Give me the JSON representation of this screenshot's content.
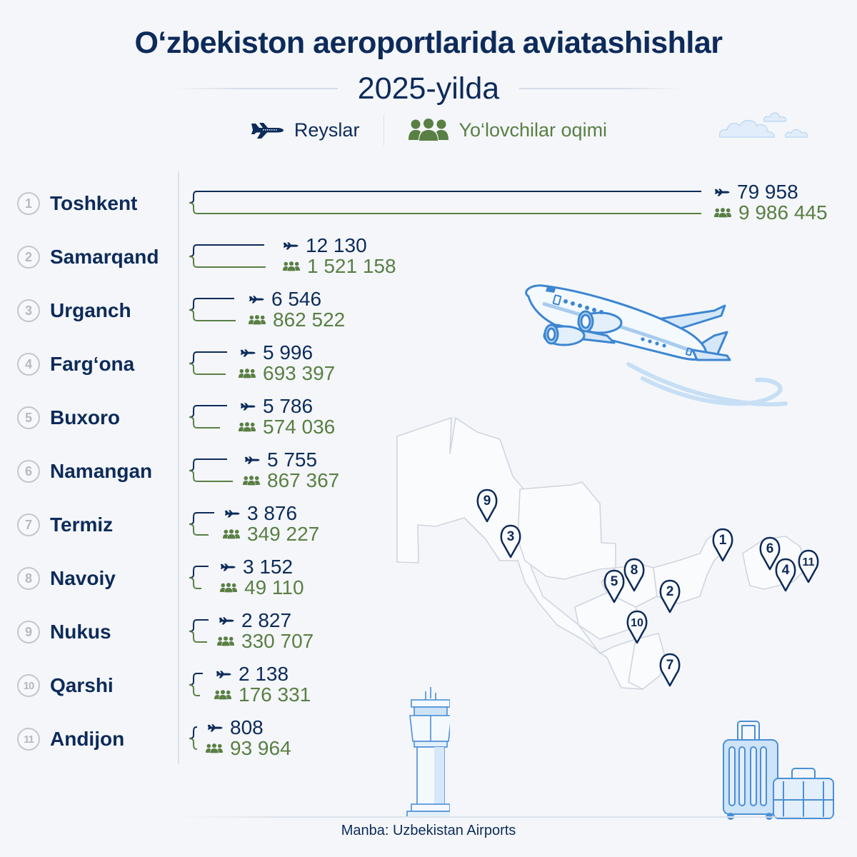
{
  "header": {
    "title": "O‘zbekiston aeroportlarida aviatashishlar",
    "subtitle": "2025-yilda"
  },
  "legend": {
    "flights_label": "Reyslar",
    "flights_icon": "airplane-icon",
    "passengers_label": "Yo‘lovchilar oqimi",
    "passengers_icon": "people-group-icon"
  },
  "colors": {
    "navy": "#0d2b5a",
    "green": "#5a7f44",
    "rank_gray": "#b5b9bf",
    "illustration_blue": "#4a8fd6",
    "background": "#f4f6f9"
  },
  "rows": [
    {
      "rank": "1",
      "city": "Toshkent",
      "flights": "79 958",
      "passengers": "9 986 445"
    },
    {
      "rank": "2",
      "city": "Samarqand",
      "flights": "12 130",
      "passengers": "1 521 158"
    },
    {
      "rank": "3",
      "city": "Urganch",
      "flights": "6 546",
      "passengers": "862 522"
    },
    {
      "rank": "4",
      "city": "Farg‘ona",
      "flights": "5 996",
      "passengers": "693 397"
    },
    {
      "rank": "5",
      "city": "Buxoro",
      "flights": "5 786",
      "passengers": "574 036"
    },
    {
      "rank": "6",
      "city": "Namangan",
      "flights": "5 755",
      "passengers": "867 367"
    },
    {
      "rank": "7",
      "city": "Termiz",
      "flights": "3 876",
      "passengers": "349 227"
    },
    {
      "rank": "8",
      "city": "Navoiy",
      "flights": "3 152",
      "passengers": "49 110"
    },
    {
      "rank": "9",
      "city": "Nukus",
      "flights": "2 827",
      "passengers": "330 707"
    },
    {
      "rank": "10",
      "city": "Qarshi",
      "flights": "2 138",
      "passengers": "176 331"
    },
    {
      "rank": "11",
      "city": "Andijon",
      "flights": "808",
      "passengers": "93 964"
    }
  ],
  "map": {
    "pins": [
      {
        "label": "1",
        "city": "Toshkent"
      },
      {
        "label": "2",
        "city": "Samarqand"
      },
      {
        "label": "3",
        "city": "Urganch"
      },
      {
        "label": "4",
        "city": "Farg‘ona"
      },
      {
        "label": "5",
        "city": "Buxoro"
      },
      {
        "label": "6",
        "city": "Namangan"
      },
      {
        "label": "7",
        "city": "Termiz"
      },
      {
        "label": "8",
        "city": "Navoiy"
      },
      {
        "label": "9",
        "city": "Nukus"
      },
      {
        "label": "10",
        "city": "Qarshi"
      },
      {
        "label": "11",
        "city": "Andijon"
      }
    ]
  },
  "footer": {
    "source": "Manba: Uzbekistan Airports"
  },
  "chart_data": {
    "type": "bar",
    "title": "O‘zbekiston aeroportlarida aviatashishlar 2025-yilda",
    "subtitle": "2025-yilda",
    "categories": [
      "Toshkent",
      "Samarqand",
      "Urganch",
      "Farg‘ona",
      "Buxoro",
      "Namangan",
      "Termiz",
      "Navoiy",
      "Nukus",
      "Qarshi",
      "Andijon"
    ],
    "series": [
      {
        "name": "Reyslar",
        "color": "#0d2b5a",
        "values": [
          79958,
          12130,
          6546,
          5996,
          5786,
          5755,
          3876,
          3152,
          2827,
          2138,
          808
        ]
      },
      {
        "name": "Yo‘lovchilar oqimi",
        "color": "#5a7f44",
        "values": [
          9986445,
          1521158,
          862522,
          693397,
          574036,
          867367,
          349227,
          49110,
          330707,
          176331,
          93964
        ]
      }
    ],
    "orientation": "horizontal",
    "legend_position": "top",
    "grid": false,
    "xlabel": "",
    "ylabel": "",
    "source": "Manba: Uzbekistan Airports"
  }
}
